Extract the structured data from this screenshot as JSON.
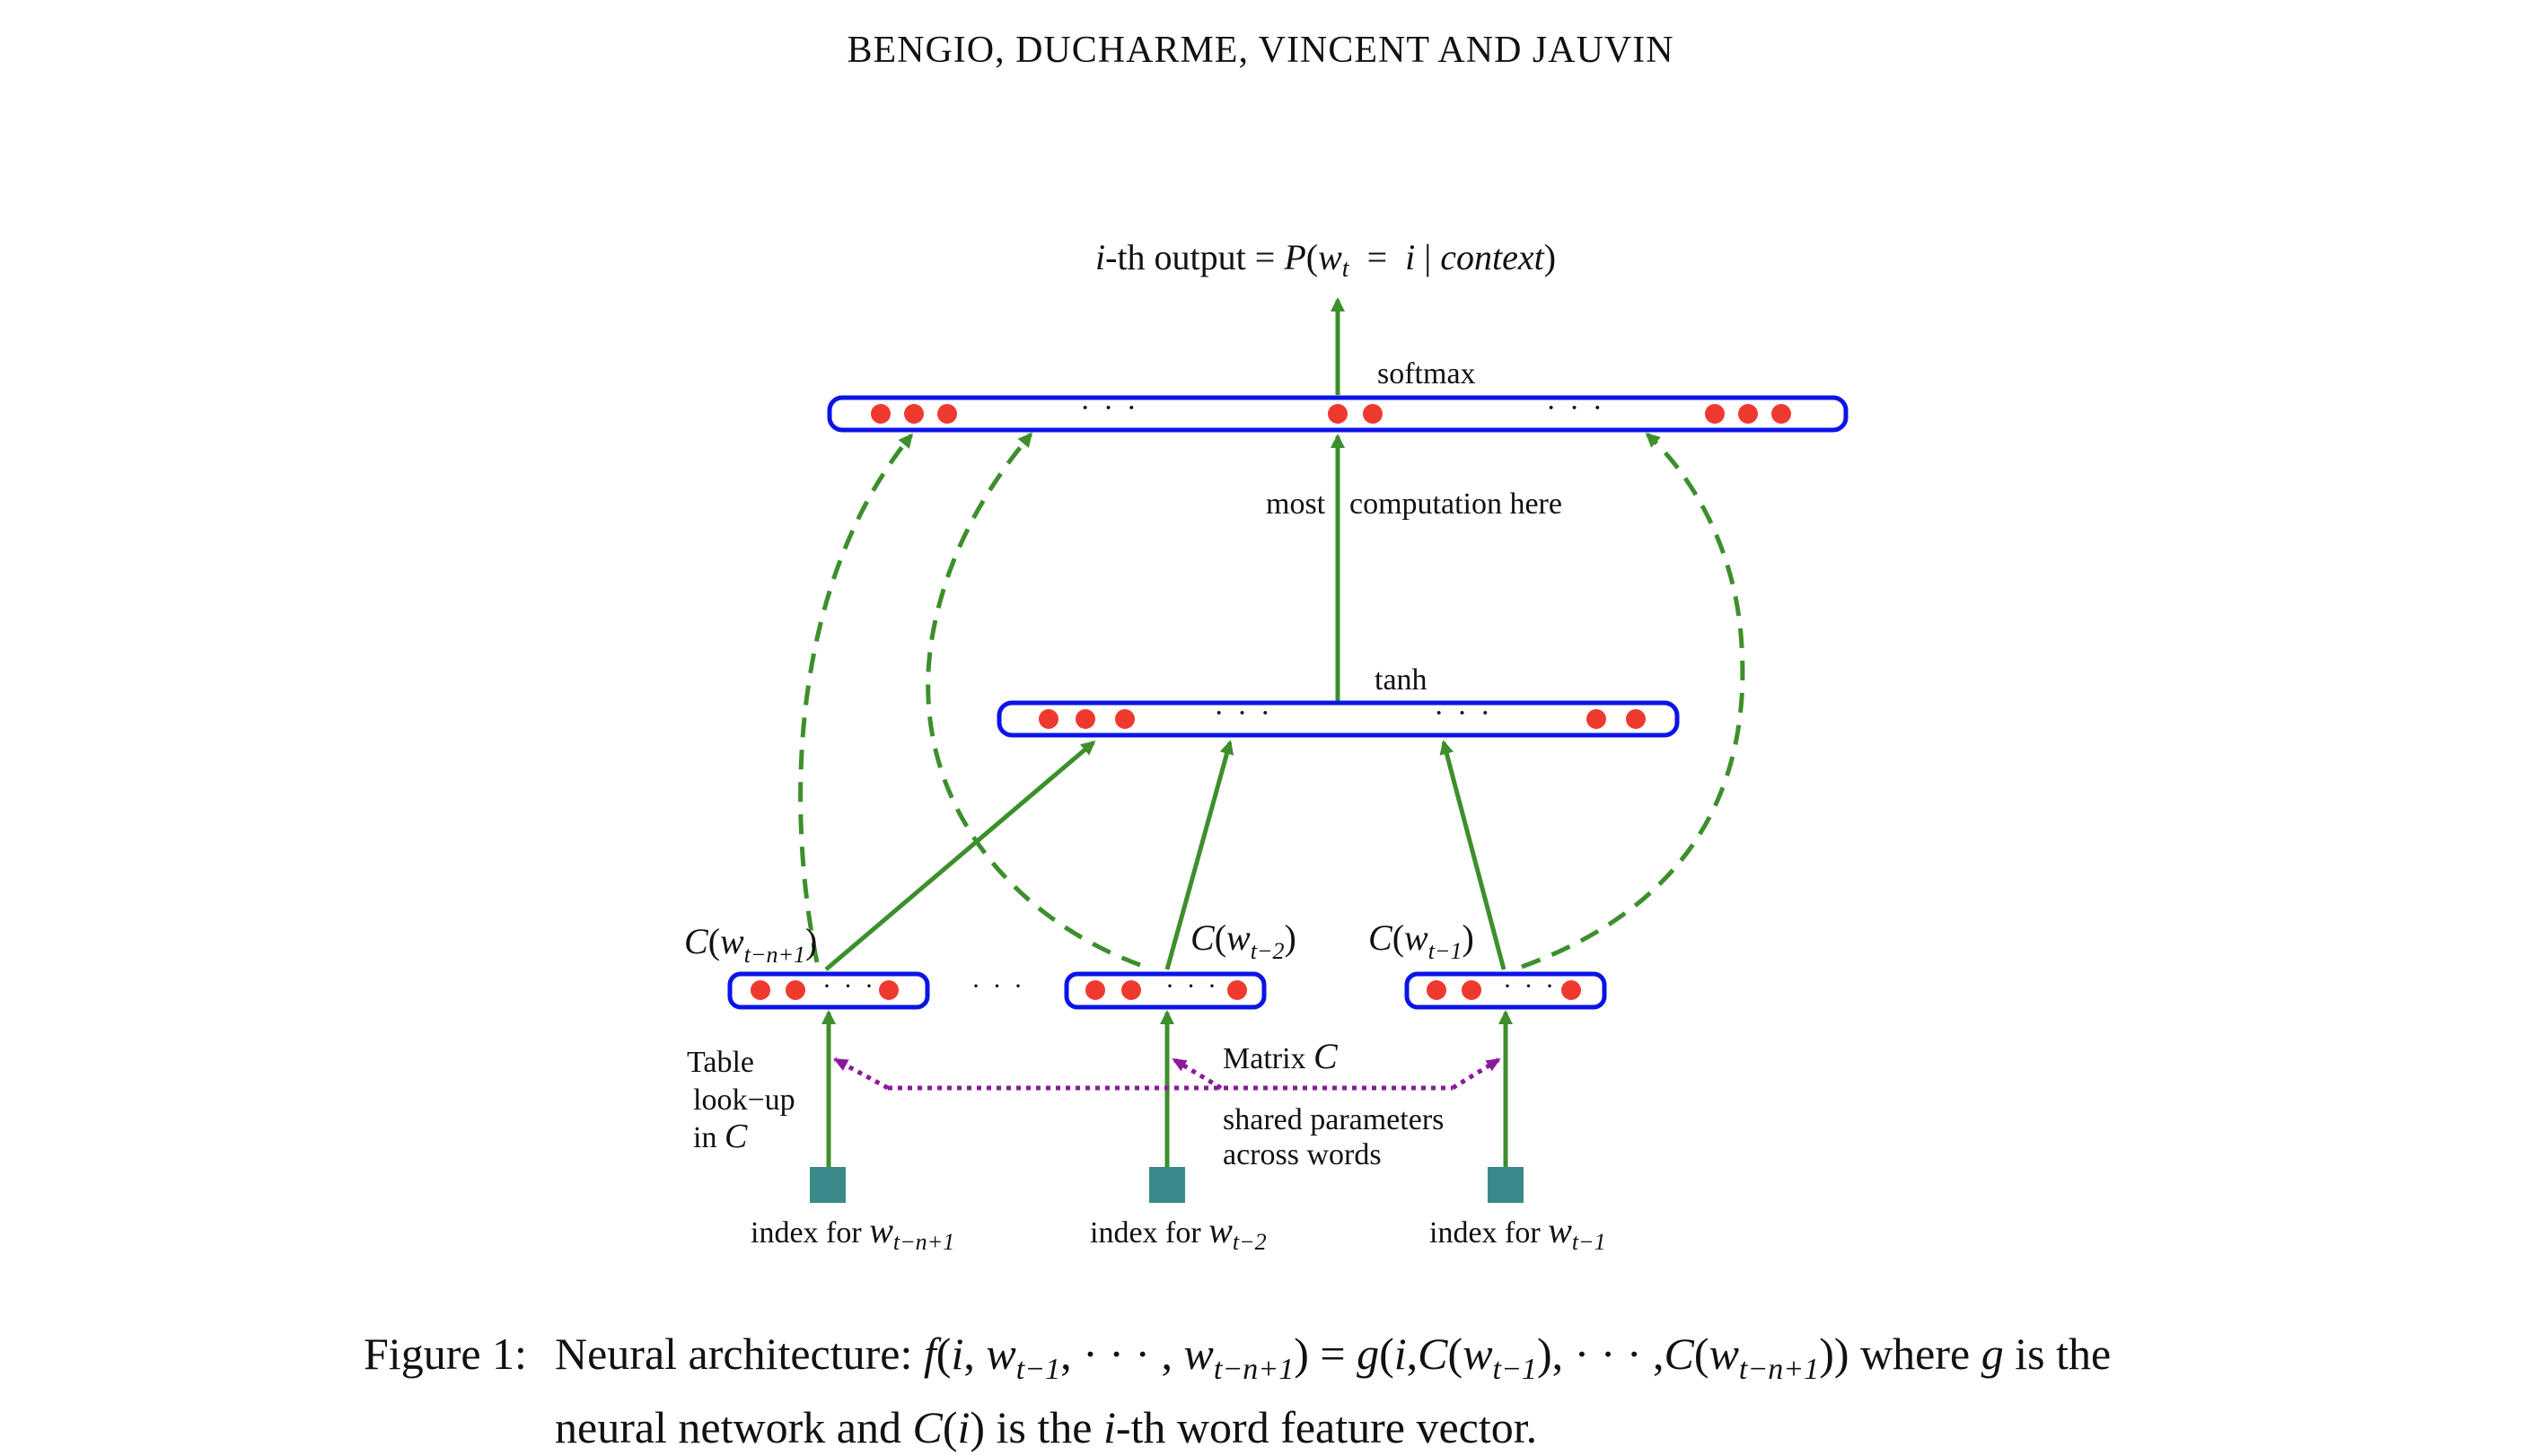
{
  "header": {
    "running_head": "BENGIO, DUCHARME, VINCENT AND JAUVIN"
  },
  "figure": {
    "output_label": {
      "i": "i",
      "th_output": "-th output = ",
      "P": "P",
      "open": "(",
      "w": "w",
      "t": "t",
      "eq": "  =  ",
      "i2": "i",
      "bar": " | ",
      "context": "context",
      "close": ")"
    },
    "softmax_label": "softmax",
    "most_label": "most",
    "computation_label": "computation here",
    "tanh_label": "tanh",
    "ellipsis": "· · ·",
    "ellipsis_between": "· · ·",
    "embedding_labels": {
      "e1": {
        "C": "C",
        "open": "(",
        "w": "w",
        "sub": "t−n+1",
        "close": ")"
      },
      "e2": {
        "C": "C",
        "open": "(",
        "w": "w",
        "sub": "t−2",
        "close": ")"
      },
      "e3": {
        "C": "C",
        "open": "(",
        "w": "w",
        "sub": "t−1",
        "close": ")"
      }
    },
    "table_lookup": {
      "line1": "Table",
      "line2": "look−up",
      "line3": "in ",
      "C": "C"
    },
    "matrix_label": {
      "text": "Matrix ",
      "C": "C"
    },
    "shared_label": {
      "line1": "shared parameters",
      "line2": "across words"
    },
    "index_labels": {
      "i1": {
        "text": "index for ",
        "w": "w",
        "sub": "t−n+1"
      },
      "i2": {
        "text": "index for ",
        "w": "w",
        "sub": "t−2"
      },
      "i3": {
        "text": "index for ",
        "w": "w",
        "sub": "t−1"
      }
    },
    "colors": {
      "layer_box": "#0a14e6",
      "neuron": "#ee3a2e",
      "solid_arrow": "#3d8f2c",
      "dashed_arrow": "#3d8f2c",
      "shared_arrow": "#8b1a9c",
      "index_square": "#3a8a8a"
    }
  },
  "caption": {
    "label": "Figure 1:",
    "line1_a": "Neural architecture: ",
    "f": "f",
    "line1_b": "(",
    "i1": "i",
    "line1_c": ", ",
    "w1": "w",
    "w1_sub": "t−1",
    "line1_d": ", · · · , ",
    "w2": "w",
    "w2_sub": "t−n+1",
    "line1_e": ") = ",
    "g": "g",
    "line1_f": "(",
    "i2": "i",
    "line1_g": ",",
    "C1": "C",
    "line1_h": "(",
    "w3": "w",
    "w3_sub": "t−1",
    "line1_i": "), · · · ,",
    "C2": "C",
    "line1_j": "(",
    "w4": "w",
    "w4_sub": "t−n+1",
    "line1_k": ")) where ",
    "g2": "g",
    "line1_l": " is the",
    "line2_a": "neural network and ",
    "C3": "C",
    "line2_b": "(",
    "i3": "i",
    "line2_c": ") is the ",
    "i4": "i",
    "line2_d": "-th word feature vector."
  }
}
